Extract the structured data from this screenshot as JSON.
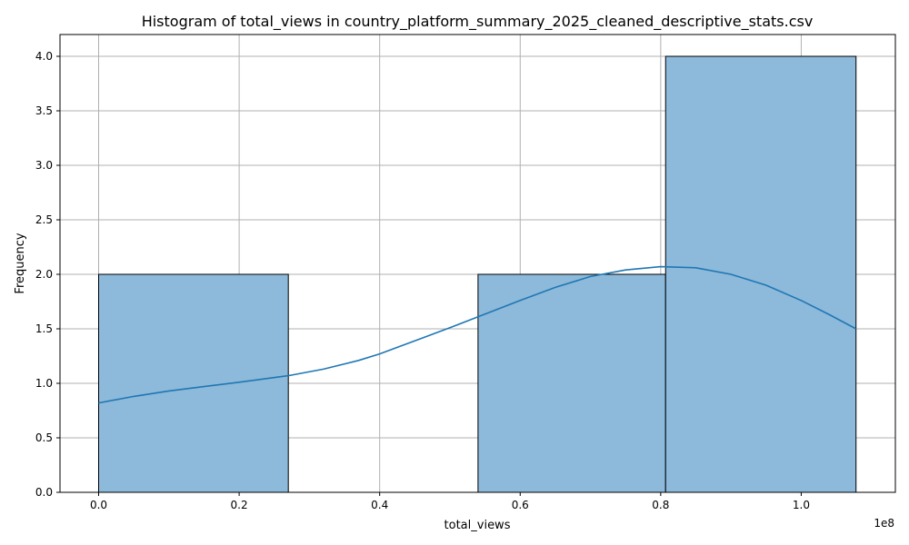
{
  "chart_data": {
    "type": "bar",
    "title": "Histogram of total_views in country_platform_summary_2025_cleaned_descriptive_stats.csv",
    "xlabel": "total_views",
    "ylabel": "Frequency",
    "x_scale_label": "1e8",
    "xlim": [
      -0.055,
      1.134
    ],
    "ylim": [
      0,
      4.2
    ],
    "x_ticks": [
      0.0,
      0.2,
      0.4,
      0.6,
      0.8,
      1.0
    ],
    "x_tick_labels": [
      "0.0",
      "0.2",
      "0.4",
      "0.6",
      "0.8",
      "1.0"
    ],
    "y_ticks": [
      0.0,
      0.5,
      1.0,
      1.5,
      2.0,
      2.5,
      3.0,
      3.5,
      4.0
    ],
    "y_tick_labels": [
      "0.0",
      "0.5",
      "1.0",
      "1.5",
      "2.0",
      "2.5",
      "3.0",
      "3.5",
      "4.0"
    ],
    "grid": true,
    "bins": [
      {
        "x0": 0.0,
        "x1": 0.27,
        "count": 2
      },
      {
        "x0": 0.27,
        "x1": 0.54,
        "count": 0
      },
      {
        "x0": 0.54,
        "x1": 0.807,
        "count": 2
      },
      {
        "x0": 0.807,
        "x1": 1.078,
        "count": 4
      }
    ],
    "kde": {
      "x": [
        0.0,
        0.05,
        0.1,
        0.15,
        0.2,
        0.27,
        0.32,
        0.37,
        0.4,
        0.45,
        0.5,
        0.54,
        0.6,
        0.65,
        0.7,
        0.75,
        0.8,
        0.85,
        0.9,
        0.95,
        1.0,
        1.04,
        1.078
      ],
      "y": [
        0.82,
        0.88,
        0.93,
        0.97,
        1.01,
        1.07,
        1.13,
        1.21,
        1.27,
        1.39,
        1.51,
        1.61,
        1.76,
        1.88,
        1.98,
        2.04,
        2.07,
        2.06,
        2.0,
        1.9,
        1.76,
        1.63,
        1.5
      ]
    },
    "colors": {
      "bar_fill": "#8db9da",
      "bar_edge": "#000000",
      "kde_line": "#1f77b4",
      "grid": "#b0b0b0"
    }
  }
}
